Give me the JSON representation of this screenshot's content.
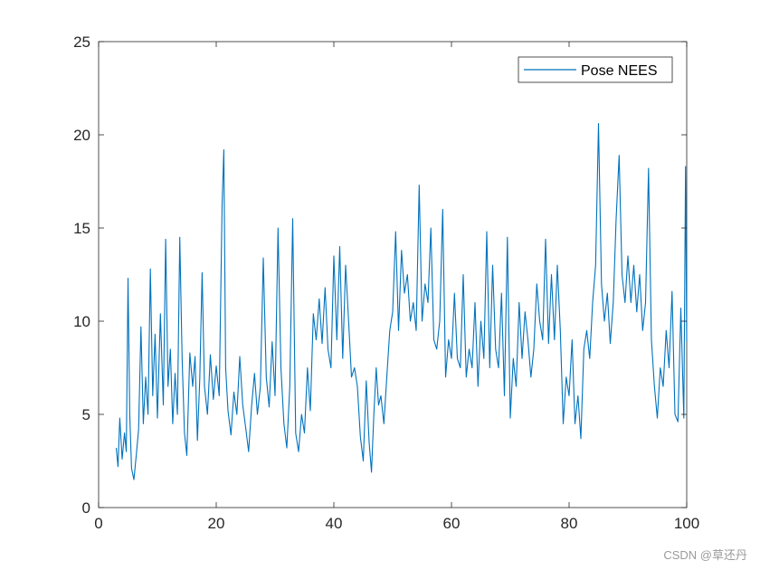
{
  "colors": {
    "series": "#0072BD",
    "axis": "#262626",
    "background": "#ffffff"
  },
  "watermark": "CSDN @草还丹",
  "chart_data": {
    "type": "line",
    "title": "",
    "xlabel": "",
    "ylabel": "",
    "xlim": [
      0,
      100
    ],
    "ylim": [
      0,
      25
    ],
    "xticks": [
      0,
      20,
      40,
      60,
      80,
      100
    ],
    "yticks": [
      0,
      5,
      10,
      15,
      20,
      25
    ],
    "grid": false,
    "legend_position": "top-right",
    "series": [
      {
        "name": "Pose NEES",
        "color": "#0072BD",
        "points": [
          [
            3.0,
            3.2
          ],
          [
            3.3,
            2.2
          ],
          [
            3.6,
            4.8
          ],
          [
            4.0,
            2.6
          ],
          [
            4.4,
            4.0
          ],
          [
            4.7,
            3.0
          ],
          [
            5.0,
            12.3
          ],
          [
            5.3,
            5.0
          ],
          [
            5.6,
            2.1
          ],
          [
            6.0,
            1.5
          ],
          [
            6.4,
            2.8
          ],
          [
            6.8,
            4.2
          ],
          [
            7.2,
            9.7
          ],
          [
            7.6,
            4.5
          ],
          [
            8.0,
            7.0
          ],
          [
            8.4,
            5.0
          ],
          [
            8.8,
            12.8
          ],
          [
            9.2,
            6.0
          ],
          [
            9.6,
            9.3
          ],
          [
            10.0,
            4.8
          ],
          [
            10.5,
            10.4
          ],
          [
            11.0,
            5.5
          ],
          [
            11.4,
            14.4
          ],
          [
            11.8,
            6.5
          ],
          [
            12.2,
            8.5
          ],
          [
            12.6,
            4.5
          ],
          [
            13.0,
            7.2
          ],
          [
            13.4,
            5.0
          ],
          [
            13.8,
            14.5
          ],
          [
            14.2,
            8.0
          ],
          [
            14.6,
            4.0
          ],
          [
            15.0,
            2.8
          ],
          [
            15.5,
            8.3
          ],
          [
            16.0,
            6.5
          ],
          [
            16.4,
            8.1
          ],
          [
            16.8,
            3.6
          ],
          [
            17.2,
            6.9
          ],
          [
            17.6,
            12.6
          ],
          [
            18.0,
            6.5
          ],
          [
            18.5,
            5.0
          ],
          [
            19.0,
            8.2
          ],
          [
            19.5,
            5.8
          ],
          [
            20.0,
            7.6
          ],
          [
            20.5,
            6.0
          ],
          [
            21.0,
            16.3
          ],
          [
            21.3,
            19.2
          ],
          [
            21.6,
            7.5
          ],
          [
            22.0,
            5.2
          ],
          [
            22.5,
            3.9
          ],
          [
            23.0,
            6.2
          ],
          [
            23.5,
            5.0
          ],
          [
            24.0,
            8.1
          ],
          [
            24.5,
            5.5
          ],
          [
            25.0,
            4.3
          ],
          [
            25.5,
            3.0
          ],
          [
            26.0,
            5.4
          ],
          [
            26.5,
            7.2
          ],
          [
            27.0,
            5.0
          ],
          [
            27.5,
            6.5
          ],
          [
            28.0,
            13.4
          ],
          [
            28.5,
            7.0
          ],
          [
            29.0,
            5.4
          ],
          [
            29.5,
            8.9
          ],
          [
            30.0,
            6.0
          ],
          [
            30.5,
            15.0
          ],
          [
            31.0,
            7.5
          ],
          [
            31.5,
            4.5
          ],
          [
            32.0,
            3.2
          ],
          [
            32.5,
            6.5
          ],
          [
            33.0,
            15.5
          ],
          [
            33.5,
            4.0
          ],
          [
            34.0,
            3.0
          ],
          [
            34.5,
            5.0
          ],
          [
            35.0,
            4.0
          ],
          [
            35.5,
            7.5
          ],
          [
            36.0,
            5.2
          ],
          [
            36.5,
            10.4
          ],
          [
            37.0,
            9.0
          ],
          [
            37.5,
            11.2
          ],
          [
            38.0,
            8.8
          ],
          [
            38.5,
            11.8
          ],
          [
            39.0,
            8.5
          ],
          [
            39.5,
            7.5
          ],
          [
            40.0,
            13.5
          ],
          [
            40.5,
            9.0
          ],
          [
            41.0,
            14.0
          ],
          [
            41.5,
            8.0
          ],
          [
            42.0,
            13.0
          ],
          [
            42.5,
            10.0
          ],
          [
            43.0,
            7.0
          ],
          [
            43.5,
            7.5
          ],
          [
            44.0,
            6.5
          ],
          [
            44.5,
            3.8
          ],
          [
            45.0,
            2.5
          ],
          [
            45.5,
            6.8
          ],
          [
            46.0,
            3.5
          ],
          [
            46.4,
            1.9
          ],
          [
            46.8,
            5.0
          ],
          [
            47.2,
            7.5
          ],
          [
            47.6,
            5.5
          ],
          [
            48.0,
            6.0
          ],
          [
            48.5,
            4.5
          ],
          [
            49.0,
            7.0
          ],
          [
            49.5,
            9.5
          ],
          [
            50.0,
            10.5
          ],
          [
            50.5,
            14.8
          ],
          [
            51.0,
            9.5
          ],
          [
            51.5,
            13.8
          ],
          [
            52.0,
            11.5
          ],
          [
            52.5,
            12.5
          ],
          [
            53.0,
            10.0
          ],
          [
            53.5,
            11.0
          ],
          [
            54.0,
            9.5
          ],
          [
            54.5,
            17.3
          ],
          [
            55.0,
            10.0
          ],
          [
            55.5,
            12.0
          ],
          [
            56.0,
            11.0
          ],
          [
            56.5,
            15.0
          ],
          [
            57.0,
            9.0
          ],
          [
            57.5,
            8.5
          ],
          [
            58.0,
            10.0
          ],
          [
            58.5,
            16.0
          ],
          [
            59.0,
            7.0
          ],
          [
            59.5,
            9.0
          ],
          [
            60.0,
            8.0
          ],
          [
            60.5,
            11.5
          ],
          [
            61.0,
            8.0
          ],
          [
            61.5,
            7.5
          ],
          [
            62.0,
            12.5
          ],
          [
            62.5,
            7.0
          ],
          [
            63.0,
            8.5
          ],
          [
            63.5,
            7.5
          ],
          [
            64.0,
            11.0
          ],
          [
            64.5,
            6.5
          ],
          [
            65.0,
            10.0
          ],
          [
            65.5,
            8.0
          ],
          [
            66.0,
            14.8
          ],
          [
            66.5,
            7.5
          ],
          [
            67.0,
            13.0
          ],
          [
            67.5,
            8.5
          ],
          [
            68.0,
            7.5
          ],
          [
            68.5,
            11.5
          ],
          [
            69.0,
            6.0
          ],
          [
            69.5,
            14.5
          ],
          [
            70.0,
            4.8
          ],
          [
            70.5,
            8.0
          ],
          [
            71.0,
            6.5
          ],
          [
            71.5,
            11.0
          ],
          [
            72.0,
            8.0
          ],
          [
            72.5,
            10.5
          ],
          [
            73.0,
            9.0
          ],
          [
            73.5,
            7.0
          ],
          [
            74.0,
            8.5
          ],
          [
            74.5,
            12.0
          ],
          [
            75.0,
            10.0
          ],
          [
            75.5,
            9.0
          ],
          [
            76.0,
            14.4
          ],
          [
            76.5,
            8.8
          ],
          [
            77.0,
            12.5
          ],
          [
            77.5,
            9.0
          ],
          [
            78.0,
            13.0
          ],
          [
            78.5,
            9.5
          ],
          [
            79.0,
            4.5
          ],
          [
            79.5,
            7.0
          ],
          [
            80.0,
            6.0
          ],
          [
            80.5,
            9.0
          ],
          [
            81.0,
            4.5
          ],
          [
            81.5,
            6.0
          ],
          [
            82.0,
            3.7
          ],
          [
            82.5,
            8.5
          ],
          [
            83.0,
            9.5
          ],
          [
            83.5,
            8.0
          ],
          [
            84.0,
            11.0
          ],
          [
            84.5,
            13.0
          ],
          [
            85.0,
            20.6
          ],
          [
            85.5,
            12.0
          ],
          [
            86.0,
            10.0
          ],
          [
            86.5,
            11.5
          ],
          [
            87.0,
            8.8
          ],
          [
            87.5,
            11.0
          ],
          [
            88.0,
            15.5
          ],
          [
            88.5,
            18.9
          ],
          [
            89.0,
            12.5
          ],
          [
            89.5,
            11.0
          ],
          [
            90.0,
            13.5
          ],
          [
            90.5,
            11.0
          ],
          [
            91.0,
            13.0
          ],
          [
            91.5,
            10.5
          ],
          [
            92.0,
            12.5
          ],
          [
            92.5,
            9.5
          ],
          [
            93.0,
            11.0
          ],
          [
            93.5,
            18.2
          ],
          [
            94.0,
            9.0
          ],
          [
            94.5,
            6.5
          ],
          [
            95.0,
            4.8
          ],
          [
            95.5,
            7.5
          ],
          [
            96.0,
            6.5
          ],
          [
            96.5,
            9.5
          ],
          [
            97.0,
            7.5
          ],
          [
            97.5,
            11.6
          ],
          [
            98.0,
            5.0
          ],
          [
            98.5,
            4.6
          ],
          [
            99.0,
            10.7
          ],
          [
            99.5,
            4.8
          ],
          [
            99.8,
            18.3
          ],
          [
            100.0,
            8.9
          ]
        ]
      }
    ]
  }
}
